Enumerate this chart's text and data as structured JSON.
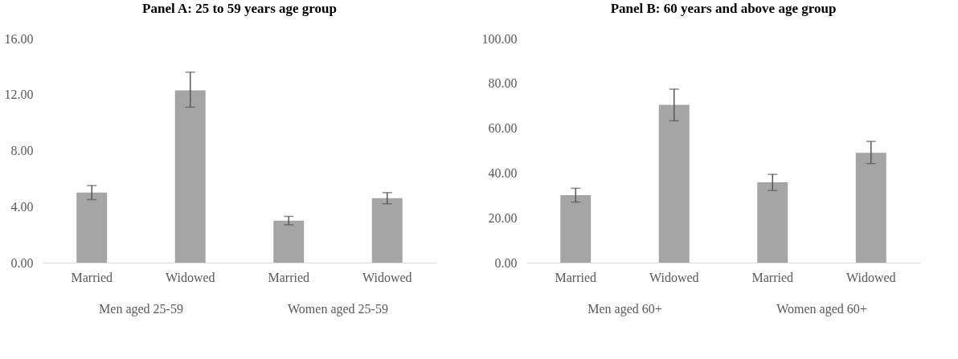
{
  "chart_data": [
    {
      "type": "bar",
      "title": "Panel A: 25 to 59 years age group",
      "categories": [
        "Married",
        "Widowed",
        "Married",
        "Widowed"
      ],
      "values": [
        5.0,
        12.3,
        3.0,
        4.6
      ],
      "errors": [
        [
          4.5,
          5.5
        ],
        [
          11.1,
          13.6
        ],
        [
          2.7,
          3.3
        ],
        [
          4.2,
          5.0
        ]
      ],
      "color": "#a5a5a5",
      "ylim": [
        0,
        16
      ],
      "yticks": [
        {
          "value": 0,
          "label": "0.00"
        },
        {
          "value": 4,
          "label": "4.00"
        },
        {
          "value": 8,
          "label": "8.00"
        },
        {
          "value": 12,
          "label": "12.00"
        },
        {
          "value": 16,
          "label": "16.00"
        }
      ],
      "annotations": [
        "Men aged 25-59",
        "Women aged 25-59"
      ]
    },
    {
      "type": "bar",
      "title": "Panel B: 60 years and above age group",
      "categories": [
        "Married",
        "Widowed",
        "Married",
        "Widowed"
      ],
      "values": [
        30.1,
        70.4,
        35.8,
        49.0
      ],
      "errors": [
        [
          27.0,
          33.2
        ],
        [
          63.3,
          77.4
        ],
        [
          32.2,
          39.4
        ],
        [
          44.2,
          54.1
        ]
      ],
      "color": "#a5a5a5",
      "ylim": [
        0,
        100
      ],
      "yticks": [
        {
          "value": 0,
          "label": "0.00"
        },
        {
          "value": 20,
          "label": "20.00"
        },
        {
          "value": 40,
          "label": "40.00"
        },
        {
          "value": 60,
          "label": "60.00"
        },
        {
          "value": 80,
          "label": "80.00"
        },
        {
          "value": 100,
          "label": "100.00"
        }
      ],
      "annotations": [
        "Men aged 60+",
        "Women aged 60+"
      ]
    }
  ]
}
